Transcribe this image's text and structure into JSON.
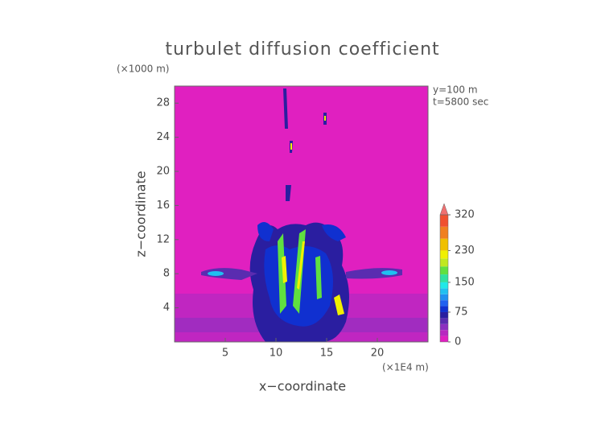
{
  "chart_data": {
    "type": "contour",
    "title": "turbulet diffusion coefficient",
    "x_label": "x−coordinate",
    "y_label": "z−coordinate",
    "x_unit": "(×1E4 m)",
    "y_unit": "(×1000 m)",
    "annotations": [
      "y=100 m",
      "t=5800 sec"
    ],
    "xlim": [
      0,
      25
    ],
    "xticks": [
      5,
      10,
      15,
      20
    ],
    "ylim": [
      0,
      30
    ],
    "yticks": [
      4,
      8,
      12,
      16,
      20,
      24,
      28
    ],
    "colorbar": {
      "clim": [
        0,
        320
      ],
      "ticks": [
        0,
        75,
        150,
        230,
        320
      ],
      "levels": [
        0,
        15,
        30,
        45,
        60,
        75,
        90,
        105,
        120,
        135,
        150,
        170,
        190,
        210,
        230,
        260,
        290
      ],
      "colors": [
        "#e020c0",
        "#b828c0",
        "#8c30c0",
        "#5a2cb0",
        "#2a1ea0",
        "#1030d0",
        "#2060f0",
        "#2090f0",
        "#20c0f0",
        "#20e8e8",
        "#30e0a0",
        "#60e040",
        "#c0e820",
        "#f0f000",
        "#f0c000",
        "#f08020",
        "#f05030"
      ],
      "extend_color": "#f07070"
    }
  }
}
